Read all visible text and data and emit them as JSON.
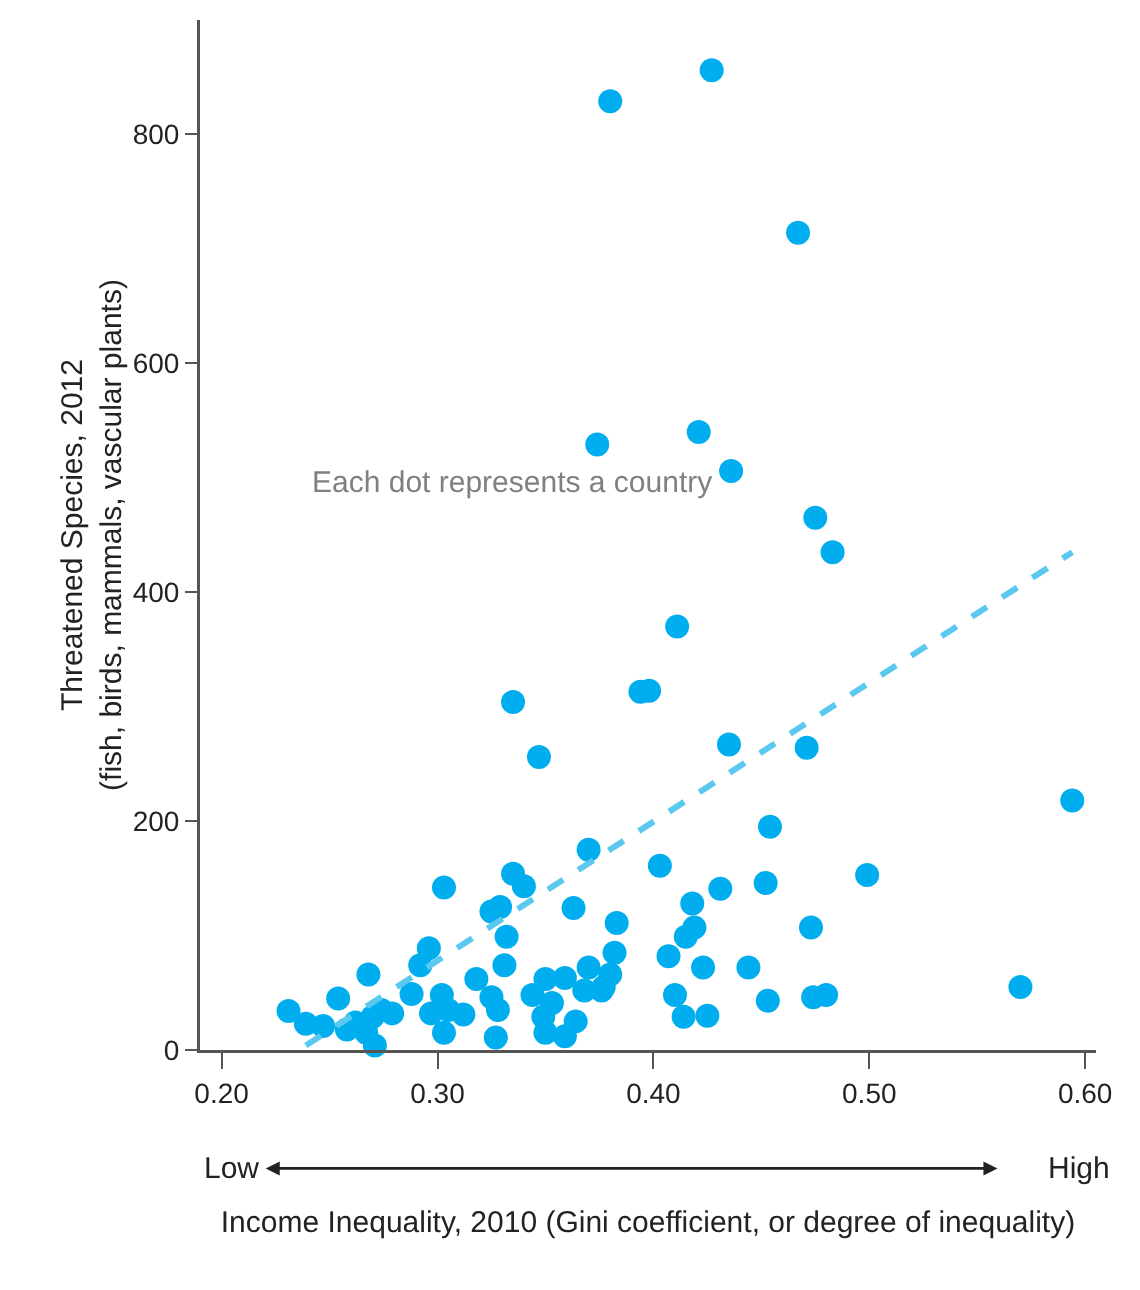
{
  "chart_data": {
    "type": "scatter",
    "xlabel": "Income Inequality, 2010 (Gini coefficient, or degree of inequality)",
    "ylabel": "Threatened Species, 2012\n(fish, birds, mammals, vascular plants)",
    "annotations": [
      "Each dot represents a country",
      "Low",
      "High"
    ],
    "xlim": [
      0.19,
      0.605
    ],
    "xticks": [
      {
        "value": 0.2,
        "label": "0.20"
      },
      {
        "value": 0.3,
        "label": "0.30"
      },
      {
        "value": 0.4,
        "label": "0.40"
      },
      {
        "value": 0.5,
        "label": "0.50"
      },
      {
        "value": 0.6,
        "label": "0.60"
      }
    ],
    "ylim": [
      0,
      900
    ],
    "yticks": [
      0,
      200,
      400,
      600,
      800
    ],
    "grid": false,
    "marker": "circle",
    "series": [
      {
        "color": "#00aeef",
        "x": [
          0.427,
          0.38,
          0.467,
          0.374,
          0.421,
          0.436,
          0.475,
          0.483,
          0.411,
          0.335,
          0.394,
          0.398,
          0.347,
          0.435,
          0.471,
          0.594,
          0.454,
          0.403,
          0.499,
          0.431,
          0.452,
          0.418,
          0.383,
          0.419,
          0.415,
          0.473,
          0.382,
          0.38,
          0.376,
          0.407,
          0.423,
          0.444,
          0.41,
          0.453,
          0.474,
          0.48,
          0.414,
          0.425,
          0.57,
          0.231,
          0.239,
          0.247,
          0.254,
          0.268,
          0.258,
          0.262,
          0.267,
          0.27,
          0.274,
          0.279,
          0.271,
          0.288,
          0.292,
          0.296,
          0.303,
          0.297,
          0.302,
          0.305,
          0.303,
          0.312,
          0.318,
          0.325,
          0.328,
          0.327,
          0.331,
          0.332,
          0.325,
          0.329,
          0.335,
          0.34,
          0.344,
          0.35,
          0.359,
          0.349,
          0.353,
          0.35,
          0.359,
          0.364,
          0.37,
          0.368,
          0.377,
          0.363,
          0.37
        ],
        "values": [
          856,
          829,
          714,
          529,
          540,
          506,
          465,
          435,
          370,
          304,
          313,
          314,
          256,
          267,
          264,
          218,
          195,
          161,
          153,
          141,
          146,
          128,
          111,
          107,
          99,
          107,
          85,
          66,
          52,
          82,
          72,
          72,
          48,
          43,
          46,
          48,
          29,
          30,
          55,
          34,
          23,
          21,
          45,
          66,
          18,
          24,
          15,
          29,
          35,
          32,
          4,
          49,
          74,
          89,
          142,
          32,
          48,
          35,
          15,
          31,
          62,
          46,
          35,
          11,
          74,
          99,
          121,
          125,
          154,
          143,
          48,
          62,
          63,
          29,
          41,
          15,
          12,
          25,
          72,
          52,
          55,
          124,
          175
        ]
      },
      {
        "type": "line",
        "color": "#5bc8f0",
        "line_style": "dashed",
        "marker": "none",
        "x": [
          0.239,
          0.594
        ],
        "values": [
          4,
          435
        ]
      }
    ]
  }
}
